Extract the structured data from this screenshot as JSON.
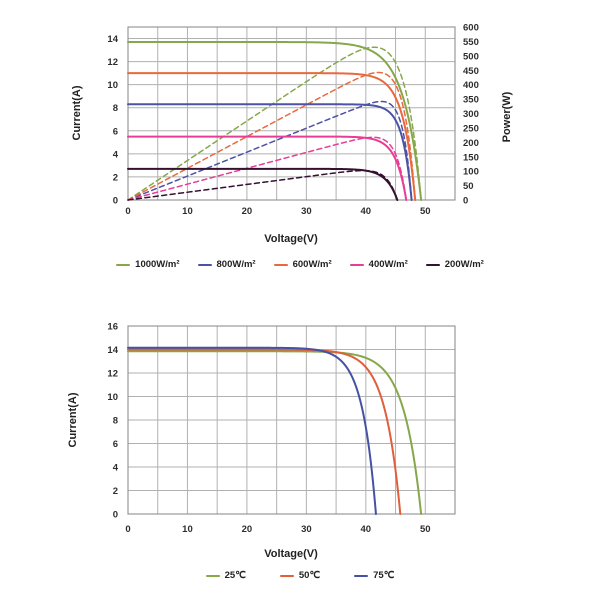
{
  "chart_data": [
    {
      "id": "top_chart",
      "type": "line",
      "title": "",
      "xlabel": "Voltage(V)",
      "ylabel_left": "Current(A)",
      "ylabel_right": "Power(W)",
      "x_ticks": [
        0,
        10,
        20,
        30,
        40,
        50
      ],
      "x_grid_step": 5,
      "x_max": 55,
      "y_left_ticks": [
        0,
        2,
        4,
        6,
        8,
        10,
        12,
        14
      ],
      "y_left_max": 15,
      "y_right_ticks": [
        0,
        50,
        100,
        150,
        200,
        250,
        300,
        350,
        400,
        450,
        500,
        550,
        600
      ],
      "y_right_max": 600,
      "grid": true,
      "legend_position": "bottom",
      "power_curves_dashed": true,
      "series": [
        {
          "name": "1000W/m²",
          "color": "#86A84A",
          "isc_A": 13.7,
          "voc_V": 49.3,
          "knee": 2.9
        },
        {
          "name": "800W/m²",
          "color": "#4C52A5",
          "isc_A": 8.3,
          "voc_V": 47.7,
          "knee": 1.5
        },
        {
          "name": "600W/m²",
          "color": "#E9693C",
          "isc_A": 11.0,
          "voc_V": 48.3,
          "knee": 2.0
        },
        {
          "name": "400W/m²",
          "color": "#E83D94",
          "isc_A": 5.5,
          "voc_V": 46.8,
          "knee": 1.75
        },
        {
          "name": "200W/m²",
          "color": "#351031",
          "isc_A": 2.7,
          "voc_V": 45.3,
          "knee": 1.85
        }
      ]
    },
    {
      "id": "bottom_chart",
      "type": "line",
      "title": "",
      "xlabel": "Voltage(V)",
      "ylabel_left": "Current(A)",
      "x_ticks": [
        0,
        10,
        20,
        30,
        40,
        50
      ],
      "x_grid_step": 5,
      "x_max": 55,
      "y_left_ticks": [
        0,
        2,
        4,
        6,
        8,
        10,
        12,
        14,
        16
      ],
      "y_left_max": 16,
      "grid": true,
      "legend_position": "bottom",
      "power_curves_dashed": false,
      "series": [
        {
          "name": "25℃",
          "color": "#86A84A",
          "isc_A": 13.85,
          "voc_V": 49.3,
          "knee": 2.9
        },
        {
          "name": "50℃",
          "color": "#DF5F3B",
          "isc_A": 14.0,
          "voc_V": 45.8,
          "knee": 2.6
        },
        {
          "name": "75℃",
          "color": "#4551A4",
          "isc_A": 14.15,
          "voc_V": 41.7,
          "knee": 2.3
        }
      ]
    }
  ],
  "style": {
    "gridline_color": "#b1b1b1",
    "border_color": "#8f8f8f",
    "text_color": "#2d2d2d",
    "background": "#ffffff"
  }
}
